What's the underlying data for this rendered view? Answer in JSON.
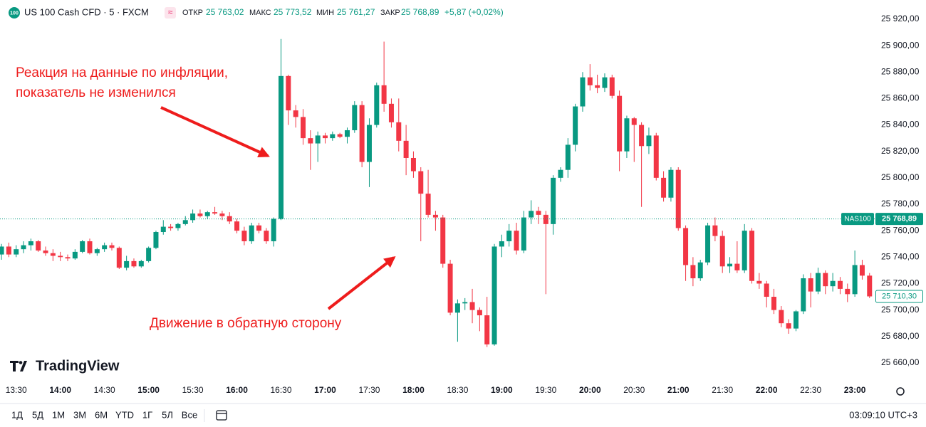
{
  "header": {
    "badge": "100",
    "symbol": "US 100 Cash CFD · 5 · FXCM",
    "open_label": "ОТКР",
    "open": "25 763,02",
    "high_label": "МАКС",
    "high": "25 773,52",
    "low_label": "МИН",
    "low": "25 761,27",
    "close_label": "ЗАКР",
    "close": "25 768,89",
    "change": "+5,87 (+0,02%)"
  },
  "chart_data": {
    "type": "candlestick",
    "up_color": "#089981",
    "down_color": "#f23645",
    "open": [
      25742,
      25748,
      25742,
      25746,
      25749,
      25752,
      25745,
      25743,
      25741,
      25740,
      25739,
      25744,
      25752,
      25743,
      25746,
      25749,
      25747,
      25732,
      25737,
      25733,
      25737,
      25747,
      25759,
      25763,
      25762,
      25765,
      25768,
      25773,
      25771,
      25774,
      25773,
      25771,
      25767,
      25760,
      25752,
      25764,
      25760,
      25752,
      25769,
      25877,
      25851,
      25846,
      25830,
      25826,
      25832,
      25830,
      25833,
      25831,
      25836,
      25855,
      25812,
      25840,
      25870,
      25856,
      25842,
      25828,
      25815,
      25805,
      25788,
      25772,
      25770,
      25735,
      25698,
      25705,
      25706,
      25700,
      25696,
      25674,
      25748,
      25752,
      25760,
      25745,
      25770,
      25775,
      25772,
      25765,
      25800,
      25806,
      25825,
      25854,
      25876,
      25870,
      25868,
      25876,
      25862,
      25820,
      25845,
      25840,
      25824,
      25832,
      25800,
      25785,
      25806,
      25762,
      25734,
      25724,
      25736,
      25764,
      25756,
      25733,
      25735,
      25730,
      25760,
      25722,
      25720,
      25710,
      25700,
      25690,
      25686,
      25699,
      25724,
      25714,
      25728,
      25718,
      25722,
      25716,
      25712,
      25734,
      25726
    ],
    "high": [
      25750,
      25751,
      25749,
      25752,
      25754,
      25753,
      25748,
      25746,
      25744,
      25742,
      25746,
      25753,
      25754,
      25747,
      25751,
      25751,
      25748,
      25741,
      25739,
      25738,
      25748,
      25760,
      25768,
      25765,
      25766,
      25771,
      25776,
      25776,
      25775,
      25778,
      25775,
      25774,
      25769,
      25763,
      25766,
      25766,
      25762,
      25770,
      25905,
      25878,
      25855,
      25852,
      25836,
      25835,
      25834,
      25835,
      25834,
      25838,
      25858,
      25858,
      25845,
      25872,
      25903,
      25860,
      25860,
      25840,
      25820,
      25808,
      25806,
      25775,
      25772,
      25738,
      25708,
      25709,
      25716,
      25702,
      25710,
      25750,
      25757,
      25765,
      25766,
      25775,
      25783,
      25778,
      25775,
      25802,
      25808,
      25830,
      25856,
      25880,
      25886,
      25878,
      25879,
      25878,
      25866,
      25847,
      25846,
      25842,
      25838,
      25834,
      25805,
      25808,
      25808,
      25764,
      25740,
      25738,
      25766,
      25770,
      25760,
      25740,
      25752,
      25765,
      25762,
      25728,
      25722,
      25716,
      25703,
      25693,
      25700,
      25727,
      25728,
      25732,
      25730,
      25728,
      25725,
      25720,
      25745,
      25738,
      25728
    ],
    "low": [
      25738,
      25740,
      25740,
      25743,
      25745,
      25744,
      25741,
      25737,
      25737,
      25737,
      25738,
      25743,
      25742,
      25741,
      25744,
      25745,
      25731,
      25730,
      25732,
      25732,
      25736,
      25746,
      25757,
      25760,
      25760,
      25764,
      25766,
      25770,
      25769,
      25772,
      25768,
      25765,
      25758,
      25749,
      25750,
      25758,
      25750,
      25748,
      25768,
      25840,
      25838,
      25825,
      25806,
      25812,
      25826,
      25828,
      25830,
      25826,
      25834,
      25808,
      25793,
      25838,
      25850,
      25838,
      25820,
      25802,
      25800,
      25752,
      25770,
      25760,
      25732,
      25696,
      25676,
      25700,
      25690,
      25684,
      25672,
      25673,
      25740,
      25748,
      25742,
      25743,
      25765,
      25765,
      25712,
      25757,
      25797,
      25800,
      25820,
      25850,
      25866,
      25864,
      25865,
      25860,
      25805,
      25815,
      25812,
      25778,
      25818,
      25798,
      25782,
      25782,
      25760,
      25722,
      25718,
      25722,
      25734,
      25752,
      25728,
      25728,
      25728,
      25728,
      25720,
      25716,
      25702,
      25697,
      25687,
      25682,
      25684,
      25697,
      25702,
      25712,
      25712,
      25714,
      25712,
      25706,
      25710,
      25723,
      25709
    ],
    "close": [
      25748,
      25742,
      25746,
      25749,
      25752,
      25745,
      25743,
      25741,
      25740,
      25739,
      25744,
      25752,
      25743,
      25746,
      25749,
      25747,
      25732,
      25737,
      25733,
      25737,
      25747,
      25759,
      25763,
      25762,
      25765,
      25768,
      25773,
      25771,
      25774,
      25773,
      25771,
      25767,
      25760,
      25752,
      25764,
      25760,
      25752,
      25769,
      25877,
      25851,
      25846,
      25830,
      25826,
      25832,
      25830,
      25833,
      25831,
      25836,
      25855,
      25812,
      25840,
      25870,
      25856,
      25842,
      25828,
      25815,
      25805,
      25788,
      25772,
      25770,
      25735,
      25698,
      25705,
      25706,
      25700,
      25696,
      25674,
      25748,
      25752,
      25760,
      25745,
      25770,
      25775,
      25772,
      25765,
      25800,
      25806,
      25825,
      25854,
      25876,
      25870,
      25868,
      25876,
      25862,
      25820,
      25845,
      25840,
      25824,
      25832,
      25800,
      25785,
      25806,
      25762,
      25734,
      25724,
      25736,
      25764,
      25756,
      25733,
      25735,
      25730,
      25760,
      25722,
      25720,
      25710,
      25700,
      25690,
      25686,
      25699,
      25724,
      25714,
      25728,
      25718,
      25722,
      25716,
      25712,
      25734,
      25726,
      25710.3
    ],
    "xlim": [
      -0.2,
      118.7
    ],
    "xticks": [
      {
        "value": 2,
        "label": "13:30"
      },
      {
        "value": 8,
        "label": "14:00"
      },
      {
        "value": 14,
        "label": "14:30"
      },
      {
        "value": 20,
        "label": "15:00"
      },
      {
        "value": 26,
        "label": "15:30"
      },
      {
        "value": 32,
        "label": "16:00"
      },
      {
        "value": 38,
        "label": "16:30"
      },
      {
        "value": 44,
        "label": "17:00"
      },
      {
        "value": 50,
        "label": "17:30"
      },
      {
        "value": 56,
        "label": "18:00"
      },
      {
        "value": 62,
        "label": "18:30"
      },
      {
        "value": 68,
        "label": "19:00"
      },
      {
        "value": 74,
        "label": "19:30"
      },
      {
        "value": 80,
        "label": "20:00"
      },
      {
        "value": 86,
        "label": "20:30"
      },
      {
        "value": 92,
        "label": "21:00"
      },
      {
        "value": 98,
        "label": "21:30"
      },
      {
        "value": 104,
        "label": "22:00"
      },
      {
        "value": 110,
        "label": "22:30"
      },
      {
        "value": 116,
        "label": "23:00"
      }
    ],
    "ylim": [
      25646.5,
      25934.5
    ],
    "yticks": [
      {
        "value": 25660,
        "label": "25 660,00"
      },
      {
        "value": 25680,
        "label": "25 680,00"
      },
      {
        "value": 25700,
        "label": "25 700,00"
      },
      {
        "value": 25720,
        "label": "25 720,00"
      },
      {
        "value": 25740,
        "label": "25 740,00"
      },
      {
        "value": 25760,
        "label": "25 760,00"
      },
      {
        "value": 25780,
        "label": "25 780,00"
      },
      {
        "value": 25800,
        "label": "25 800,00"
      },
      {
        "value": 25820,
        "label": "25 820,00"
      },
      {
        "value": 25840,
        "label": "25 840,00"
      },
      {
        "value": 25860,
        "label": "25 860,00"
      },
      {
        "value": 25880,
        "label": "25 880,00"
      },
      {
        "value": 25900,
        "label": "25 900,00"
      },
      {
        "value": 25920,
        "label": "25 920,00"
      }
    ],
    "annotations": [
      "Реакция на данные по инфляции,",
      "показатель не изменился",
      "Движение в обратную сторону"
    ],
    "price_lines": [
      {
        "name": "NAS100",
        "value": 25768.89,
        "label": "25 768,89"
      },
      {
        "value": 25710.3,
        "label": "25 710,30"
      }
    ]
  },
  "branding": "TradingView",
  "toolbar": {
    "ranges": [
      "1Д",
      "5Д",
      "1М",
      "3М",
      "6М",
      "YTD",
      "1Г",
      "5Л",
      "Все"
    ],
    "clock": "03:09:10 UTC+3"
  }
}
